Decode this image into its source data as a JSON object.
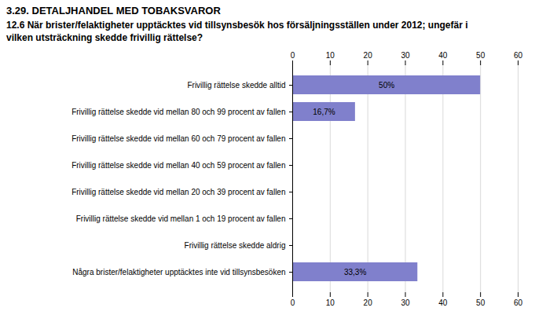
{
  "chart_data": {
    "type": "bar",
    "orientation": "horizontal",
    "title": "3.29. DETALJHANDEL MED TOBAKSVAROR",
    "subtitle": "12.6 När brister/felaktigheter upptäcktes vid tillsynsbesök hos försäljningsställen under 2012; ungefär i\nvilken utsträckning skedde frivillig rättelse?",
    "categories": [
      "Frivillig rättelse skedde alltid",
      "Frivillig rättelse skedde vid mellan 80 och 99 procent av fallen",
      "Frivillig rättelse skedde vid mellan 60 och 79 procent av fallen",
      "Frivillig rättelse skedde vid mellan 40 och 59 procent av fallen",
      "Frivillig rättelse skedde vid mellan 20 och 39 procent av fallen",
      "Frivillig rättelse skedde vid mellan 1 och 19 procent av fallen",
      "Frivillig rättelse skedde aldrig",
      "Några brister/felaktigheter upptäcktes inte vid tillsynsbesöken"
    ],
    "values": [
      50.0,
      16.7,
      0.0,
      0.0,
      0.0,
      0.0,
      0.0,
      33.3
    ],
    "value_labels": [
      "50%",
      "16,7%",
      null,
      null,
      null,
      null,
      null,
      "33,3%"
    ],
    "data_labels": true,
    "color": "#8080cc",
    "xlim": [
      0,
      60
    ],
    "xticks": [
      0,
      10,
      20,
      30,
      40,
      50,
      60
    ],
    "grid": true
  }
}
